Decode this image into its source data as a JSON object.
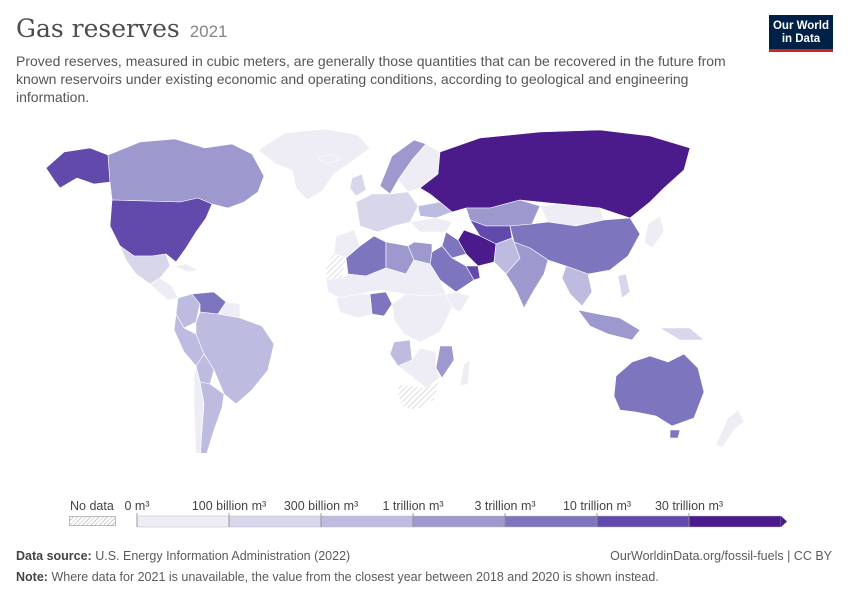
{
  "header": {
    "title": "Gas reserves",
    "year": "2021",
    "subtitle": "Proved reserves, measured in cubic meters, are generally those quantities that can be recovered in the future from known reservoirs under existing economic and operating conditions, according to geological and engineering information."
  },
  "logo": {
    "line1": "Our World",
    "line2": "in Data"
  },
  "legend": {
    "no_data_label": "No data",
    "ticks": [
      "0 m³",
      "100 billion m³",
      "300 billion m³",
      "1 trillion m³",
      "3 trillion m³",
      "10 trillion m³",
      "30 trillion m³"
    ],
    "colors": [
      "#eeedf6",
      "#d7d6eb",
      "#bdbce0",
      "#9d99cf",
      "#7d76bf",
      "#614aab",
      "#4b1a8b"
    ]
  },
  "footer": {
    "source_label": "Data source:",
    "source_text": "U.S. Energy Information Administration (2022)",
    "note_label": "Note:",
    "note_text": "Where data for 2021 is unavailable, the value from the closest year between 2018 and 2020 is shown instead.",
    "url_text": "OurWorldinData.org/fossil-fuels | CC BY"
  },
  "map_data": [
    {
      "name": "Russia",
      "bin": 6
    },
    {
      "name": "Iran",
      "bin": 6
    },
    {
      "name": "Qatar",
      "bin": 5
    },
    {
      "name": "United States",
      "bin": 5
    },
    {
      "name": "Turkmenistan",
      "bin": 5
    },
    {
      "name": "China",
      "bin": 4
    },
    {
      "name": "Venezuela",
      "bin": 4
    },
    {
      "name": "Saudi Arabia",
      "bin": 4
    },
    {
      "name": "Algeria",
      "bin": 4
    },
    {
      "name": "Nigeria",
      "bin": 4
    },
    {
      "name": "Australia",
      "bin": 4
    },
    {
      "name": "Iraq",
      "bin": 4
    },
    {
      "name": "Kazakhstan",
      "bin": 3
    },
    {
      "name": "Indonesia",
      "bin": 3
    },
    {
      "name": "Mozambique",
      "bin": 3
    },
    {
      "name": "Canada",
      "bin": 3
    },
    {
      "name": "Egypt",
      "bin": 3
    },
    {
      "name": "Norway",
      "bin": 3
    },
    {
      "name": "India",
      "bin": 3
    },
    {
      "name": "Libya",
      "bin": 3
    },
    {
      "name": "Malaysia",
      "bin": 3
    },
    {
      "name": "Argentina",
      "bin": 2
    },
    {
      "name": "Brazil",
      "bin": 2
    },
    {
      "name": "Mexico",
      "bin": 1
    },
    {
      "name": "Peru",
      "bin": 2
    },
    {
      "name": "Myanmar",
      "bin": 2
    },
    {
      "name": "Pakistan",
      "bin": 2
    },
    {
      "name": "Angola",
      "bin": 2
    },
    {
      "name": "Ukraine",
      "bin": 2
    },
    {
      "name": "Western Sahara",
      "bin": -1
    },
    {
      "name": "South Africa",
      "bin": -1
    },
    {
      "name": "Greenland",
      "bin": 0
    }
  ]
}
